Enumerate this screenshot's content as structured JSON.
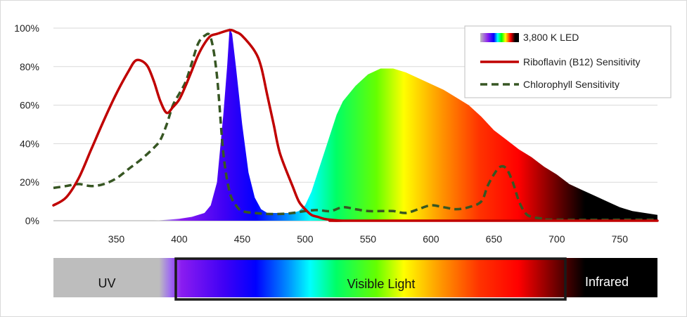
{
  "chart_data": {
    "type": "line",
    "x_axis": {
      "range": [
        300,
        780
      ],
      "ticks": [
        350,
        400,
        450,
        500,
        550,
        600,
        650,
        700,
        750
      ],
      "tick_labels": [
        "350",
        "400",
        "450",
        "500",
        "550",
        "600",
        "650",
        "700",
        "750"
      ]
    },
    "y_axis": {
      "range": [
        0,
        100
      ],
      "ticks": [
        0,
        20,
        40,
        60,
        80,
        100
      ],
      "tick_labels": [
        "0%",
        "20%",
        "40%",
        "60%",
        "80%",
        "100%"
      ]
    },
    "grid": "horizontal",
    "legend": {
      "placement": "top-right",
      "entries": [
        {
          "label": "3,800 K LED",
          "style": "spectrum-swatch"
        },
        {
          "label": "Riboflavin (B12) Sensitivity",
          "color": "#c00000",
          "style": "solid"
        },
        {
          "label": "Chlorophyll Sensitivity",
          "color": "#375623",
          "style": "dashed"
        }
      ]
    },
    "series": [
      {
        "name": "3,800 K LED",
        "kind": "spectrum-area",
        "x": [
          380,
          400,
          410,
          420,
          425,
          430,
          435,
          438,
          440,
          442,
          445,
          450,
          455,
          460,
          465,
          470,
          480,
          490,
          495,
          500,
          505,
          510,
          515,
          520,
          525,
          530,
          540,
          550,
          560,
          570,
          580,
          590,
          600,
          610,
          620,
          630,
          640,
          650,
          660,
          670,
          680,
          690,
          700,
          710,
          720,
          730,
          740,
          750,
          760,
          770,
          780
        ],
        "y": [
          0,
          1,
          2,
          4,
          8,
          20,
          55,
          80,
          100,
          97,
          80,
          50,
          25,
          12,
          6,
          4,
          4,
          4,
          5,
          8,
          15,
          25,
          35,
          45,
          55,
          62,
          70,
          76,
          79,
          79,
          77,
          74,
          71,
          68,
          64,
          60,
          54,
          47,
          42,
          37,
          33,
          28,
          24,
          19,
          16,
          13,
          10,
          7,
          5,
          4,
          3
        ]
      },
      {
        "name": "Riboflavin (B12) Sensitivity",
        "color": "#c00000",
        "style": "solid",
        "x": [
          300,
          310,
          320,
          330,
          340,
          350,
          360,
          365,
          370,
          375,
          380,
          385,
          390,
          395,
          400,
          405,
          410,
          415,
          420,
          425,
          430,
          440,
          445,
          450,
          460,
          465,
          470,
          475,
          480,
          490,
          495,
          500,
          505,
          510,
          515,
          520,
          530,
          540,
          780
        ],
        "y": [
          8,
          12,
          22,
          37,
          52,
          66,
          78,
          83,
          83,
          80,
          72,
          62,
          56,
          59,
          63,
          70,
          78,
          86,
          92,
          96,
          97,
          99,
          98,
          96,
          88,
          80,
          65,
          50,
          35,
          18,
          10,
          6,
          3,
          2,
          1,
          0.5,
          0,
          0,
          0
        ]
      },
      {
        "name": "Chlorophyll Sensitivity",
        "color": "#375623",
        "style": "dashed",
        "x": [
          300,
          310,
          320,
          330,
          340,
          350,
          360,
          370,
          380,
          385,
          390,
          395,
          400,
          405,
          410,
          415,
          420,
          425,
          430,
          435,
          440,
          445,
          450,
          460,
          470,
          480,
          490,
          500,
          510,
          520,
          530,
          540,
          550,
          560,
          570,
          580,
          590,
          600,
          610,
          620,
          630,
          640,
          645,
          650,
          655,
          660,
          665,
          670,
          675,
          680,
          690,
          700,
          780
        ],
        "y": [
          17,
          18,
          19,
          18,
          19,
          22,
          27,
          32,
          38,
          42,
          50,
          60,
          66,
          72,
          82,
          92,
          96,
          95,
          75,
          35,
          15,
          8,
          5,
          4,
          3.5,
          3.5,
          4,
          5,
          5.5,
          5,
          7,
          6,
          5,
          5,
          5,
          4,
          6,
          8,
          7,
          6,
          7,
          10,
          18,
          24,
          28,
          27,
          20,
          10,
          4,
          2,
          1,
          0.5,
          0.5
        ]
      }
    ],
    "spectrum_band": {
      "labels": {
        "uv": "UV",
        "visible": "Visible Light",
        "infrared": "Infrared"
      }
    }
  }
}
